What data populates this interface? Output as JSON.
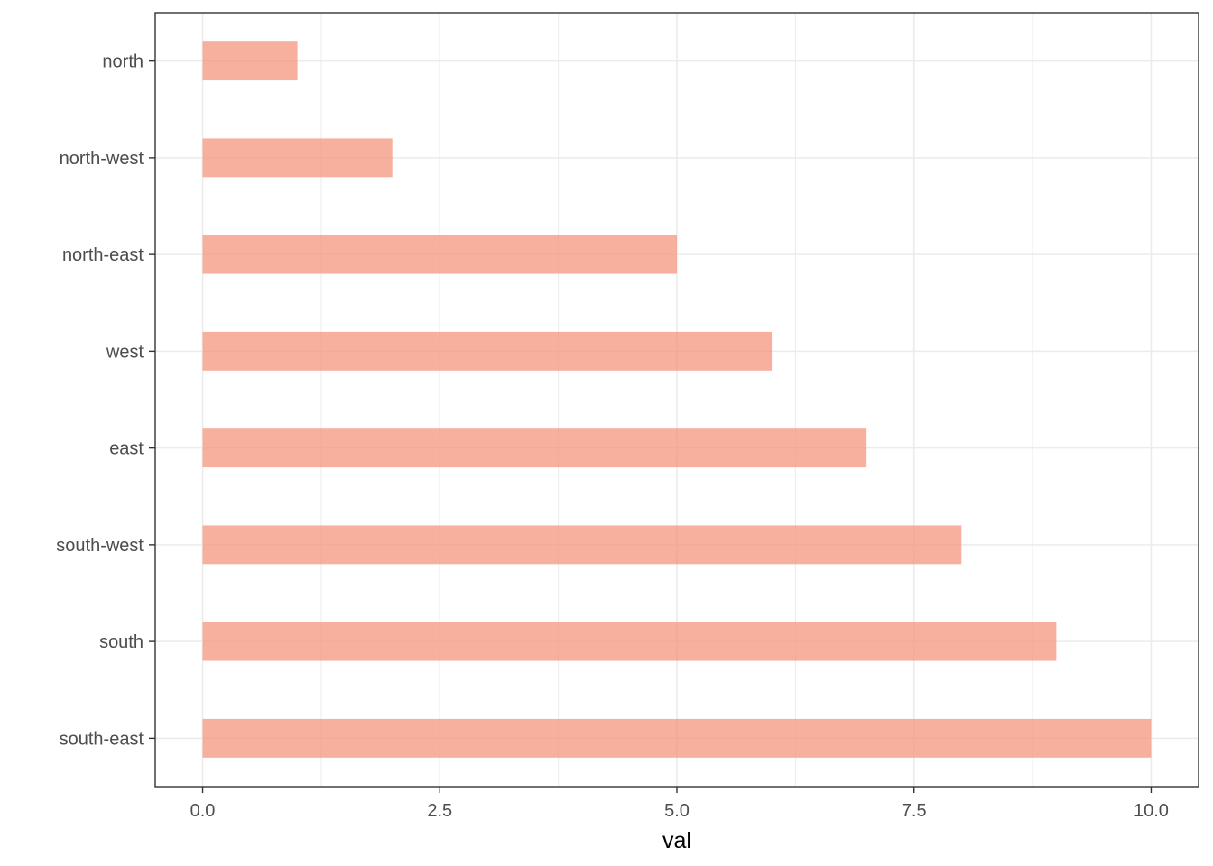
{
  "chart_data": {
    "type": "bar",
    "orientation": "horizontal",
    "categories": [
      "north",
      "north-west",
      "north-east",
      "west",
      "east",
      "south-west",
      "south",
      "south-east"
    ],
    "values": [
      1,
      2,
      5,
      6,
      7,
      8,
      9,
      10
    ],
    "title": "",
    "xlabel": "val",
    "ylabel": "",
    "xlim": [
      -0.5,
      10.5
    ],
    "x_ticks": [
      "0.0",
      "2.5",
      "5.0",
      "7.5",
      "10.0"
    ],
    "grid": true,
    "bar_color": "#F4967D",
    "bar_opacity": 0.75
  }
}
